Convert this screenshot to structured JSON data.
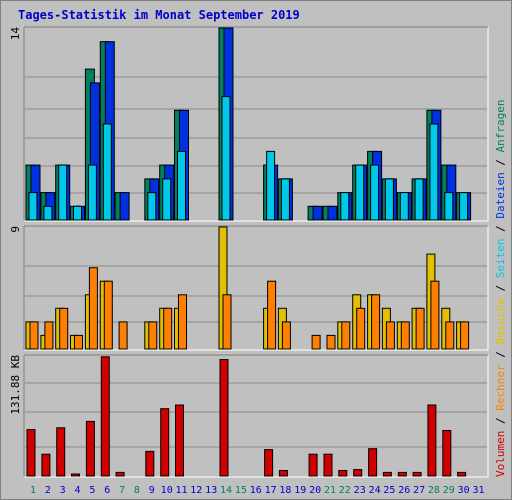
{
  "title": "Tages-Statistik im Monat September 2019",
  "panel_labels": {
    "top_max": "14",
    "middle_max": "9",
    "bottom_max": "131.88 KB"
  },
  "legend": [
    {
      "text": "Volumen",
      "color": "#d00000"
    },
    {
      "text": " / ",
      "color": "#000000"
    },
    {
      "text": "Rechner",
      "color": "#ff8000"
    },
    {
      "text": " / ",
      "color": "#000000"
    },
    {
      "text": "Besuche",
      "color": "#e0c000"
    },
    {
      "text": " / ",
      "color": "#000000"
    },
    {
      "text": "Seiten",
      "color": "#00c8e8"
    },
    {
      "text": " / ",
      "color": "#000000"
    },
    {
      "text": "Dateien",
      "color": "#0030e0"
    },
    {
      "text": " / ",
      "color": "#000000"
    },
    {
      "text": "Anfragen",
      "color": "#008060"
    }
  ],
  "chart_data": {
    "type": "bar",
    "categories": [
      "1",
      "2",
      "3",
      "4",
      "5",
      "6",
      "7",
      "8",
      "9",
      "10",
      "11",
      "12",
      "13",
      "14",
      "15",
      "16",
      "17",
      "18",
      "19",
      "20",
      "21",
      "22",
      "23",
      "24",
      "25",
      "26",
      "27",
      "28",
      "29",
      "30",
      "31"
    ],
    "weekend_days": [
      "1",
      "7",
      "8",
      "14",
      "15",
      "21",
      "22",
      "28",
      "29"
    ],
    "colors": {
      "weekday": "#0000cc",
      "weekend": "#008060"
    },
    "panels": [
      {
        "name": "top",
        "max": 14,
        "series": [
          {
            "name": "Anfragen",
            "color": "#008060",
            "values": [
              4,
              2,
              4,
              1,
              11,
              13,
              2,
              0,
              3,
              4,
              8,
              0,
              0,
              14,
              0,
              0,
              4,
              3,
              0,
              1,
              1,
              2,
              4,
              5,
              3,
              2,
              3,
              8,
              4,
              2,
              0
            ]
          },
          {
            "name": "Dateien",
            "color": "#0030e0",
            "values": [
              4,
              2,
              4,
              1,
              10,
              13,
              2,
              0,
              3,
              4,
              8,
              0,
              0,
              14,
              0,
              0,
              4,
              3,
              0,
              1,
              1,
              2,
              4,
              5,
              3,
              2,
              3,
              8,
              4,
              2,
              0
            ]
          },
          {
            "name": "Seiten",
            "color": "#00c8e8",
            "values": [
              2,
              1,
              4,
              1,
              4,
              7,
              0,
              0,
              2,
              3,
              5,
              0,
              0,
              9,
              0,
              0,
              5,
              3,
              0,
              0,
              0,
              2,
              4,
              4,
              3,
              2,
              3,
              7,
              2,
              2,
              0
            ]
          }
        ]
      },
      {
        "name": "middle",
        "max": 9,
        "series": [
          {
            "name": "Besuche",
            "color": "#e0c000",
            "values": [
              2,
              1,
              3,
              1,
              4,
              5,
              0,
              0,
              2,
              3,
              3,
              0,
              0,
              9,
              0,
              0,
              3,
              3,
              0,
              0,
              0,
              2,
              4,
              4,
              3,
              2,
              3,
              7,
              3,
              2,
              0
            ]
          },
          {
            "name": "Rechner",
            "color": "#ff8000",
            "values": [
              2,
              2,
              3,
              1,
              6,
              5,
              2,
              0,
              2,
              3,
              4,
              0,
              0,
              4,
              0,
              0,
              5,
              2,
              0,
              1,
              1,
              2,
              3,
              4,
              2,
              2,
              3,
              5,
              2,
              2,
              0
            ]
          }
        ]
      },
      {
        "name": "bottom",
        "max": 131.88,
        "series": [
          {
            "name": "Volumen",
            "color": "#d00000",
            "values": [
              51,
              24,
              53,
              2,
              60,
              131,
              4,
              0,
              27,
              74,
              78,
              0,
              0,
              128,
              0,
              0,
              29,
              6,
              0,
              24,
              24,
              6,
              7,
              30,
              4,
              4,
              4,
              78,
              50,
              4,
              0
            ]
          }
        ]
      }
    ]
  }
}
